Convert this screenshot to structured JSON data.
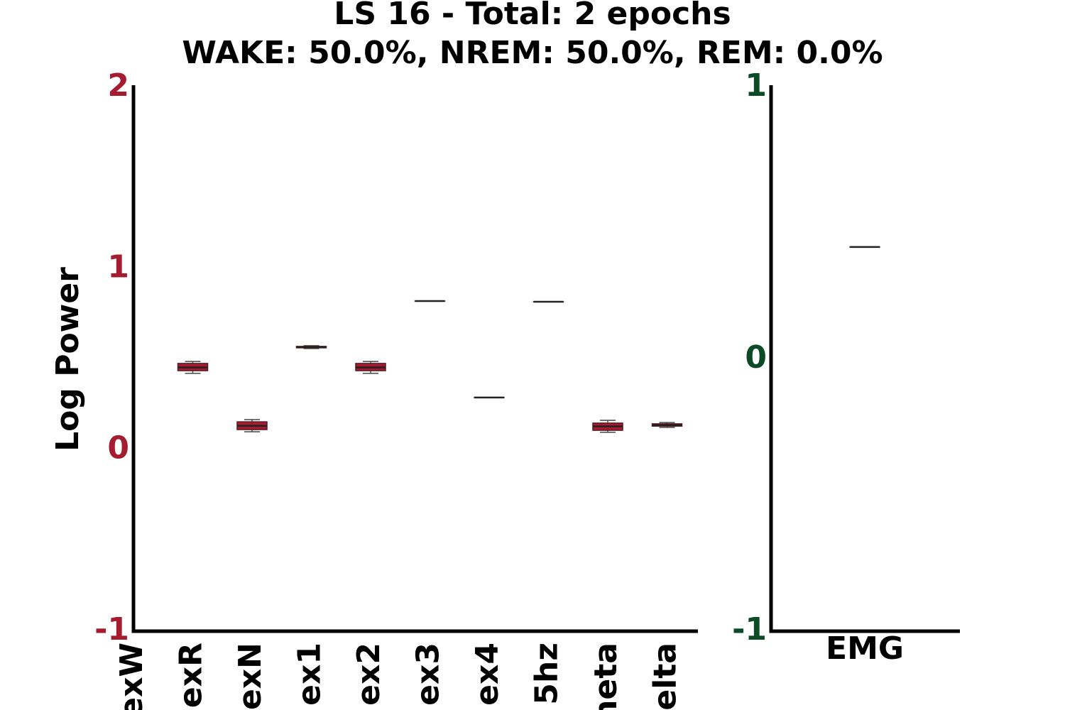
{
  "title": "LS 16 - Total: 2 epochs",
  "subtitle": "WAKE: 50.0%, NREM: 50.0%, REM: 0.0%",
  "chart_data": [
    {
      "type": "box",
      "ylabel": "Log Power",
      "color": "#a51c30",
      "tick_color": "#a51c30",
      "categories": [
        "exW",
        "exR",
        "exN",
        "ex1",
        "ex2",
        "ex3",
        "ex4",
        "5hz",
        "neta",
        "elta"
      ],
      "min": [
        null,
        0.422,
        0.1,
        0.559,
        0.422,
        0.821,
        0.289,
        0.817,
        0.097,
        0.124
      ],
      "q1": [
        null,
        0.437,
        0.112,
        0.563,
        0.437,
        0.821,
        0.289,
        0.817,
        0.108,
        0.131
      ],
      "median": [
        null,
        0.455,
        0.133,
        0.567,
        0.455,
        0.821,
        0.289,
        0.817,
        0.13,
        0.137
      ],
      "q3": [
        null,
        0.477,
        0.155,
        0.571,
        0.477,
        0.821,
        0.289,
        0.817,
        0.148,
        0.144
      ],
      "max": [
        null,
        0.488,
        0.167,
        0.575,
        0.488,
        0.821,
        0.289,
        0.817,
        0.163,
        0.151
      ],
      "ylim": [
        -1,
        2
      ],
      "yticks": [
        -1,
        0,
        1,
        2
      ]
    },
    {
      "type": "box",
      "color": "#0a4a24",
      "tick_color": "#0a4a24",
      "categories": [
        "EMG"
      ],
      "min": [
        0.413
      ],
      "q1": [
        0.413
      ],
      "median": [
        0.413
      ],
      "q3": [
        0.413
      ],
      "max": [
        0.413
      ],
      "ylim": [
        -1,
        1
      ],
      "yticks": [
        -1,
        0,
        1
      ]
    }
  ]
}
